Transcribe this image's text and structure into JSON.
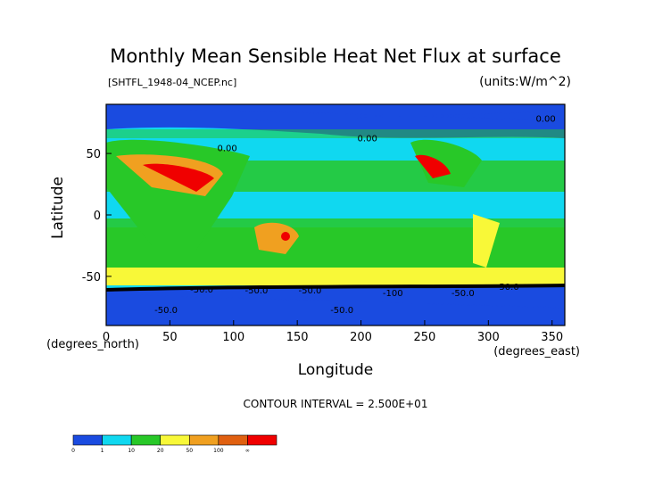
{
  "chart_data": {
    "type": "heatmap",
    "title": "Monthly Mean Sensible Heat Net Flux at surface",
    "subtitle": "[SHTFL_1948-04_NCEP.nc]",
    "units_label": "(units:W/m^2)",
    "xlabel": "Longitude",
    "ylabel": "Latitude",
    "x_unit_label": "(degrees_east)",
    "y_unit_label": "(degrees_north)",
    "xlim": [
      0,
      360
    ],
    "ylim": [
      -90,
      90
    ],
    "x_ticks": [
      0,
      50,
      100,
      150,
      200,
      250,
      300,
      350
    ],
    "y_ticks": [
      50,
      0,
      -50
    ],
    "contour_interval_text": "CONTOUR INTERVAL = 2.500E+01",
    "contour_labels": [
      {
        "text": "0.00",
        "lon": 345,
        "lat": 76
      },
      {
        "text": "0.00",
        "lon": 95,
        "lat": 52
      },
      {
        "text": "0.00",
        "lon": 205,
        "lat": 60
      },
      {
        "text": "-50.0",
        "lon": 75,
        "lat": -63
      },
      {
        "text": "-50.0",
        "lon": 118,
        "lat": -64
      },
      {
        "text": "-50.0",
        "lon": 160,
        "lat": -64
      },
      {
        "text": "-100",
        "lon": 225,
        "lat": -66
      },
      {
        "text": "-50.0",
        "lon": 280,
        "lat": -66
      },
      {
        "text": "-50.0",
        "lon": 315,
        "lat": -61
      },
      {
        "text": "-50.0",
        "lon": 47,
        "lat": -80
      },
      {
        "text": "-50.0",
        "lon": 185,
        "lat": -80
      }
    ],
    "colorbar": {
      "boundaries": [
        "0",
        "1",
        "10",
        "20",
        "50",
        "100",
        "∞"
      ],
      "colors": [
        "#1a4be0",
        "#10d8f0",
        "#28c828",
        "#f8f838",
        "#f0a020",
        "#e06010",
        "#f00000"
      ]
    },
    "grid": false,
    "legend": "colorbar bottom-left"
  }
}
